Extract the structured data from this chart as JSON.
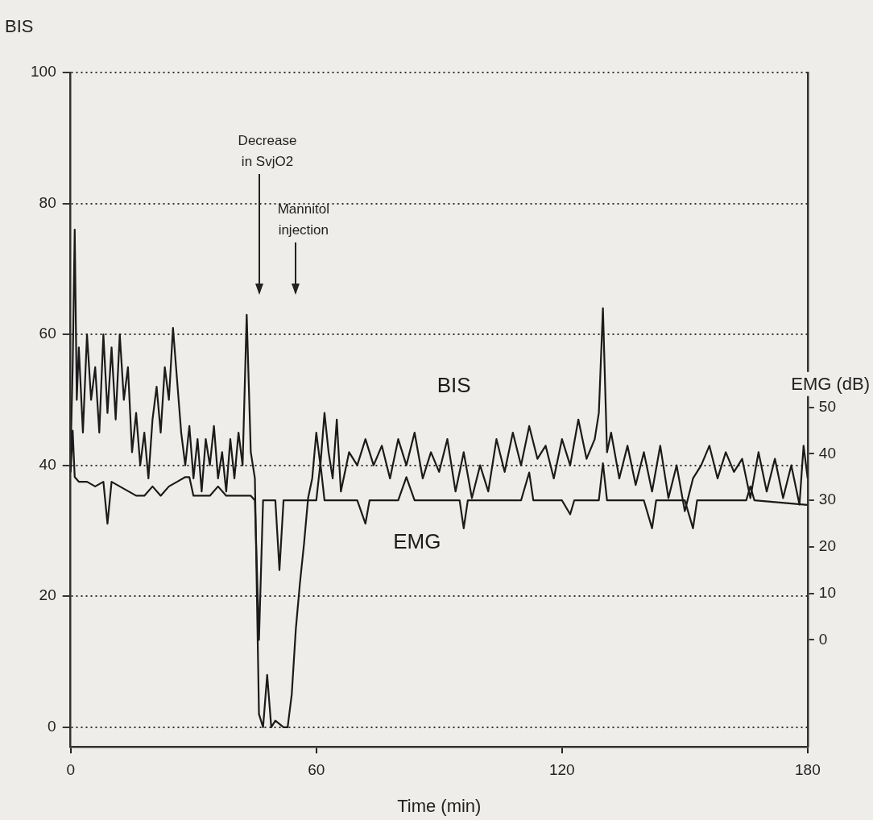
{
  "chart_data": {
    "type": "line",
    "xlabel": "Time (min)",
    "ylabel": "BIS",
    "y2label": "EMG (dB)",
    "xlim": [
      0,
      180
    ],
    "xticks": [
      0,
      60,
      120,
      180
    ],
    "ylim": [
      -3,
      100
    ],
    "yticks": [
      0,
      20,
      40,
      60,
      80,
      100
    ],
    "y2lim": [
      -23,
      122
    ],
    "y2ticks": [
      0,
      10,
      20,
      30,
      40,
      50
    ],
    "grid": "y",
    "legend": false,
    "marker": "none",
    "line_style": "solid",
    "annotations": [
      "Decrease\nin SvjO2",
      "Mannitol\ninjection"
    ],
    "series": [
      {
        "name": "BIS",
        "color": "#1c1a1a",
        "x": [
          0,
          0.5,
          1,
          1.5,
          2,
          3,
          4,
          5,
          6,
          7,
          8,
          9,
          10,
          11,
          12,
          13,
          14,
          15,
          16,
          17,
          18,
          19,
          20,
          21,
          22,
          23,
          24,
          25,
          26,
          27,
          28,
          29,
          30,
          31,
          32,
          33,
          34,
          35,
          36,
          37,
          38,
          39,
          40,
          41,
          42,
          43,
          44,
          45,
          46,
          47,
          48,
          49,
          50,
          52,
          53,
          54,
          55,
          56,
          57,
          58,
          59,
          60,
          61,
          62,
          63,
          64,
          65,
          66,
          68,
          70,
          72,
          74,
          76,
          78,
          80,
          82,
          84,
          86,
          88,
          90,
          92,
          94,
          96,
          98,
          100,
          102,
          104,
          106,
          108,
          110,
          112,
          114,
          116,
          118,
          120,
          122,
          124,
          126,
          128,
          129,
          130,
          131,
          132,
          134,
          136,
          138,
          140,
          142,
          144,
          146,
          148,
          150,
          152,
          154,
          156,
          158,
          160,
          162,
          164,
          166,
          168,
          170,
          172,
          174,
          176,
          178,
          179,
          180
        ],
        "values": [
          42,
          55,
          76,
          50,
          58,
          45,
          60,
          50,
          55,
          45,
          60,
          48,
          58,
          47,
          60,
          50,
          55,
          42,
          48,
          40,
          45,
          38,
          47,
          52,
          45,
          55,
          50,
          61,
          53,
          45,
          40,
          46,
          38,
          44,
          36,
          44,
          40,
          46,
          38,
          42,
          36,
          44,
          38,
          45,
          40,
          63,
          42,
          38,
          2,
          0,
          8,
          0,
          1,
          0,
          0,
          5,
          15,
          22,
          28,
          35,
          38,
          45,
          40,
          48,
          42,
          38,
          47,
          36,
          42,
          40,
          44,
          40,
          43,
          38,
          44,
          40,
          45,
          38,
          42,
          39,
          44,
          36,
          42,
          35,
          40,
          36,
          44,
          39,
          45,
          40,
          46,
          41,
          43,
          38,
          44,
          40,
          47,
          41,
          44,
          48,
          64,
          42,
          45,
          38,
          43,
          37,
          42,
          36,
          43,
          35,
          40,
          33,
          38,
          40,
          43,
          38,
          42,
          39,
          41,
          35,
          42,
          36,
          41,
          35,
          40,
          34,
          43,
          38
        ]
      },
      {
        "name": "EMG",
        "color": "#1c1a1a",
        "axis": "y2",
        "x": [
          0,
          0.5,
          1,
          2,
          4,
          6,
          8,
          9,
          10,
          12,
          14,
          16,
          18,
          20,
          22,
          24,
          26,
          28,
          29,
          30,
          32,
          34,
          36,
          38,
          40,
          42,
          44,
          45,
          46,
          47,
          50,
          51,
          52,
          56,
          60,
          61,
          62,
          70,
          72,
          73,
          80,
          82,
          84,
          95,
          96,
          97,
          110,
          112,
          113,
          120,
          122,
          123,
          129,
          130,
          131,
          140,
          142,
          143,
          150,
          152,
          153,
          165,
          166,
          167,
          180
        ],
        "values": [
          36,
          45,
          35,
          34,
          34,
          33,
          34,
          25,
          34,
          33,
          32,
          31,
          31,
          33,
          31,
          33,
          34,
          35,
          35,
          31,
          31,
          31,
          33,
          31,
          31,
          31,
          31,
          30,
          0,
          30,
          30,
          15,
          30,
          30,
          30,
          38,
          30,
          30,
          25,
          30,
          30,
          35,
          30,
          30,
          24,
          30,
          30,
          36,
          30,
          30,
          27,
          30,
          30,
          38,
          30,
          30,
          24,
          30,
          30,
          24,
          30,
          30,
          33,
          30,
          29
        ]
      }
    ]
  }
}
